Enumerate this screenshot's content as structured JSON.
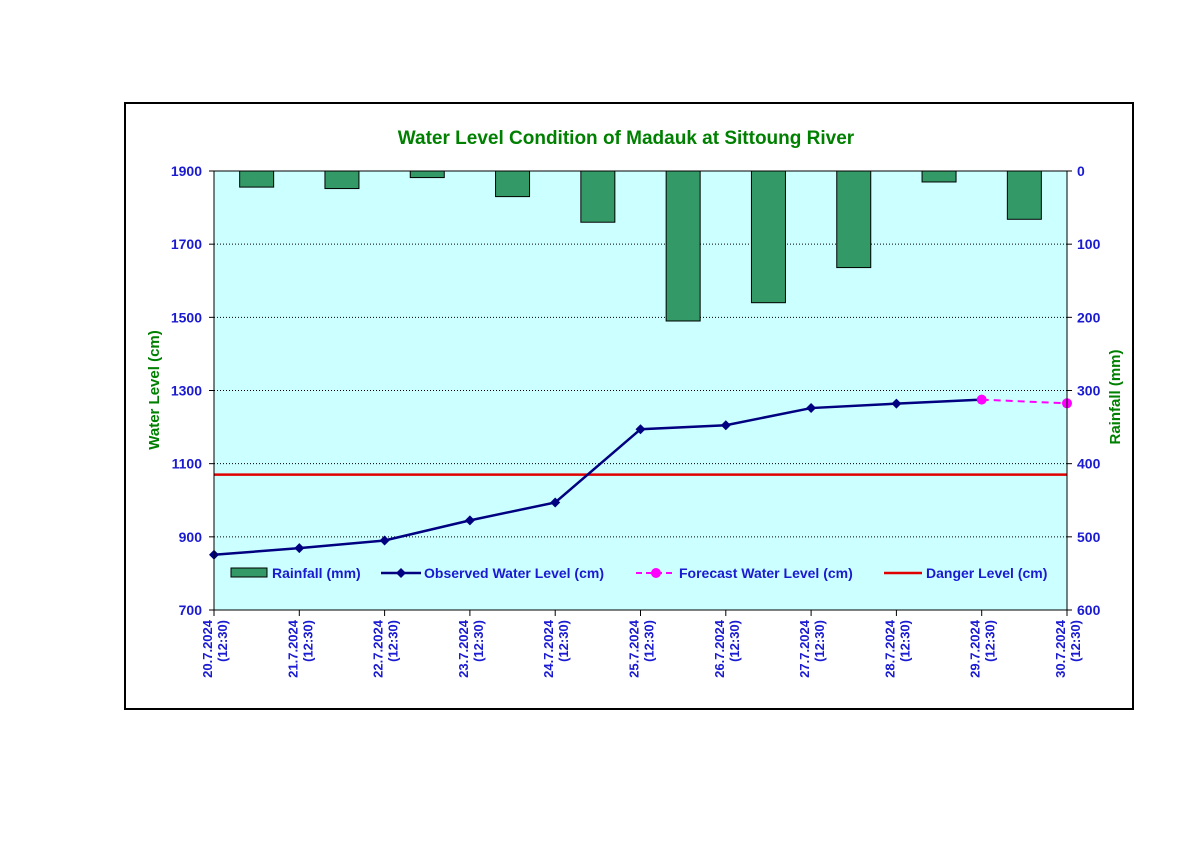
{
  "chart_data": {
    "type": "bar+line",
    "title": "Water Level Condition of Madauk at Sittoung River",
    "ylabel_left": "Water Level (cm)",
    "ylabel_right": "Rainfall (mm)",
    "ylim_left": [
      700,
      1900
    ],
    "yticks_left": [
      700,
      900,
      1100,
      1300,
      1500,
      1700,
      1900
    ],
    "ylim_right": [
      0,
      600
    ],
    "yticks_right": [
      0,
      100,
      200,
      300,
      400,
      500,
      600
    ],
    "right_axis_inverted": true,
    "grid": "horizontal dotted",
    "categories": [
      [
        "20.7.2024",
        "(12:30)"
      ],
      [
        "21.7.2024",
        "(12:30)"
      ],
      [
        "22.7.2024",
        "(12:30)"
      ],
      [
        "23.7.2024",
        "(12:30)"
      ],
      [
        "24.7.2024",
        "(12:30)"
      ],
      [
        "25.7.2024",
        "(12:30)"
      ],
      [
        "26.7.2024",
        "(12:30)"
      ],
      [
        "27.7.2024",
        "(12:30)"
      ],
      [
        "28.7.2024",
        "(12:30)"
      ],
      [
        "29.7.2024",
        "(12:30)"
      ],
      [
        "30.7.2024",
        "(12:30)"
      ]
    ],
    "series": [
      {
        "name": "Rainfall (mm)",
        "type": "bar",
        "axis": "right",
        "values": [
          22,
          24,
          9,
          35,
          70,
          205,
          180,
          132,
          15,
          66,
          null
        ]
      },
      {
        "name": "Observed Water Level (cm)",
        "type": "line",
        "axis": "left",
        "values": [
          851,
          869,
          890,
          945,
          994,
          1194,
          1205,
          1252,
          1264,
          1275,
          null
        ]
      },
      {
        "name": "Forecast Water Level (cm)",
        "type": "line",
        "axis": "left",
        "style": "dashed",
        "values": [
          null,
          null,
          null,
          null,
          null,
          null,
          null,
          null,
          null,
          1275,
          1265
        ]
      },
      {
        "name": "Danger Level (cm)",
        "type": "line",
        "axis": "left",
        "values": [
          1070,
          1070,
          1070,
          1070,
          1070,
          1070,
          1070,
          1070,
          1070,
          1070,
          1070
        ]
      }
    ],
    "legend_position": "inside-bottom",
    "colors": {
      "plot_background": "#ccffff",
      "rainfall": "#339966",
      "observed": "#000080",
      "forecast": "#ff00ff",
      "danger": "#e00000",
      "title": "#008000",
      "axis_title": "#008000",
      "tick_text": "#1a1ad0"
    }
  }
}
